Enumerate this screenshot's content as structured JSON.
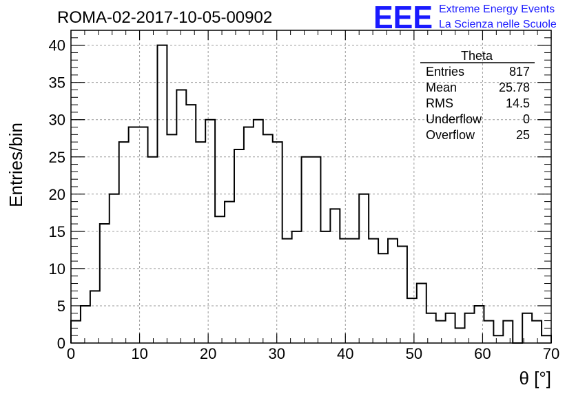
{
  "chart_data": {
    "type": "bar",
    "title": "ROMA-02-2017-10-05-00902",
    "xlabel": "θ [°]",
    "ylabel": "Entries/bin",
    "xlim": [
      0,
      70
    ],
    "ylim": [
      0,
      42
    ],
    "bin_width": 1.4,
    "x_ticks": [
      "0",
      "10",
      "20",
      "30",
      "40",
      "50",
      "60",
      "70"
    ],
    "y_ticks": [
      "0",
      "5",
      "10",
      "15",
      "20",
      "25",
      "30",
      "35",
      "40"
    ],
    "grid": true,
    "values": [
      3,
      5,
      7,
      16,
      20,
      27,
      29,
      29,
      25,
      40,
      28,
      34,
      32,
      27,
      30,
      17,
      19,
      26,
      29,
      30,
      28,
      27,
      14,
      15,
      25,
      25,
      15,
      18,
      14,
      14,
      20,
      14,
      12,
      14,
      13,
      6,
      8,
      4,
      3,
      4,
      2,
      4,
      5,
      3,
      1,
      3,
      0,
      4,
      3,
      1
    ],
    "stats_box": {
      "title": "Theta",
      "rows": [
        {
          "label": "Entries",
          "value": "817"
        },
        {
          "label": "Mean",
          "value": "25.78"
        },
        {
          "label": "RMS",
          "value": "14.5"
        },
        {
          "label": "Underflow",
          "value": "0"
        },
        {
          "label": "Overflow",
          "value": "25"
        }
      ]
    }
  },
  "logo": {
    "mark": "EEE",
    "line1": "Extreme Energy Events",
    "line2": "La Scienza nelle Scuole",
    "color": "#1a1aff"
  }
}
